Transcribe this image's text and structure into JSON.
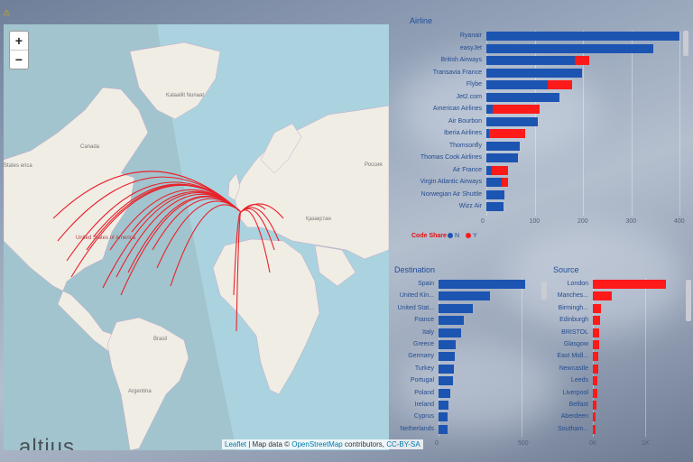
{
  "colors": {
    "n": "#1c54b2",
    "y": "#ff1a1a",
    "land": "#f0ede5",
    "water": "#aad3df",
    "route": "#e8222a"
  },
  "map": {
    "zoom_in": "+",
    "zoom_out": "−",
    "labels": [
      {
        "text": "Kalaallit Nunaat",
        "kind": "country"
      },
      {
        "text": "Canada",
        "kind": "country"
      },
      {
        "text": "United States of America",
        "kind": "country"
      },
      {
        "text": "Россия",
        "kind": "country"
      },
      {
        "text": "Қазақстан",
        "kind": "country"
      },
      {
        "text": "Brasil",
        "kind": "country"
      },
      {
        "text": "Argentina",
        "kind": "country"
      },
      {
        "text": "States erica",
        "kind": "country"
      }
    ],
    "logo": "altius",
    "attribution": {
      "leaflet": "Leaflet",
      "sep": " | Map data © ",
      "osm": "OpenStreetMap",
      "mid": " contributors, ",
      "license": "CC-BY-SA"
    }
  },
  "airline": {
    "title": "Airline",
    "rows": [
      {
        "label": "Ryanair",
        "n": 400,
        "y": 0
      },
      {
        "label": "easyJet",
        "n": 345,
        "y": 0
      },
      {
        "label": "British Airways",
        "n": 183,
        "y": 30
      },
      {
        "label": "Transavia France",
        "n": 198,
        "y": 0
      },
      {
        "label": "Flybe",
        "n": 128,
        "y": 50
      },
      {
        "label": "Jet2.com",
        "n": 152,
        "y": 0
      },
      {
        "label": "American Airlines",
        "n": 14,
        "y": 97
      },
      {
        "label": "Air Bourbon",
        "n": 106,
        "y": 0
      },
      {
        "label": "Iberia Airlines",
        "n": 5,
        "y": 76
      },
      {
        "label": "Thomsonfly",
        "n": 69,
        "y": 0
      },
      {
        "label": "Thomas Cook Airlines",
        "n": 65,
        "y": 0
      },
      {
        "label": "Air France",
        "n": 12,
        "y": 33
      },
      {
        "label": "Virgin Atlantic Airways",
        "n": 31,
        "y": 14
      },
      {
        "label": "Norwegian Air Shuttle",
        "n": 38,
        "y": 0
      },
      {
        "label": "Wizz Air",
        "n": 35,
        "y": 0
      }
    ],
    "ticks": [
      "0",
      "100",
      "200",
      "300",
      "400"
    ],
    "xmax": 400,
    "legend": {
      "title": "Code Share",
      "n": "N",
      "y": "Y"
    }
  },
  "destination": {
    "title": "Destination",
    "rows": [
      {
        "label": "Spain",
        "v": 520
      },
      {
        "label": "United Kin...",
        "v": 310
      },
      {
        "label": "United Stat...",
        "v": 205
      },
      {
        "label": "France",
        "v": 150
      },
      {
        "label": "Italy",
        "v": 138
      },
      {
        "label": "Greece",
        "v": 105
      },
      {
        "label": "Germany",
        "v": 100
      },
      {
        "label": "Turkey",
        "v": 90
      },
      {
        "label": "Portugal",
        "v": 85
      },
      {
        "label": "Poland",
        "v": 70
      },
      {
        "label": "Ireland",
        "v": 62
      },
      {
        "label": "Cyprus",
        "v": 55
      },
      {
        "label": "Netherlands",
        "v": 52
      }
    ],
    "ticks": [
      "0",
      "500"
    ],
    "xmax": 500
  },
  "source": {
    "title": "Source",
    "rows": [
      {
        "label": "London",
        "v": 1400
      },
      {
        "label": "Manches...",
        "v": 360
      },
      {
        "label": "Birmingh...",
        "v": 160
      },
      {
        "label": "Edinburgh",
        "v": 130
      },
      {
        "label": "BRISTOL",
        "v": 120
      },
      {
        "label": "Glasgow",
        "v": 115
      },
      {
        "label": "East Midl...",
        "v": 110
      },
      {
        "label": "Newcastle",
        "v": 100
      },
      {
        "label": "Leeds",
        "v": 90
      },
      {
        "label": "Liverpool",
        "v": 80
      },
      {
        "label": "Belfast",
        "v": 70
      },
      {
        "label": "Aberdeen",
        "v": 60
      },
      {
        "label": "Southam...",
        "v": 55
      }
    ],
    "ticks": [
      "0K",
      "1K"
    ],
    "xmax": 1000
  }
}
